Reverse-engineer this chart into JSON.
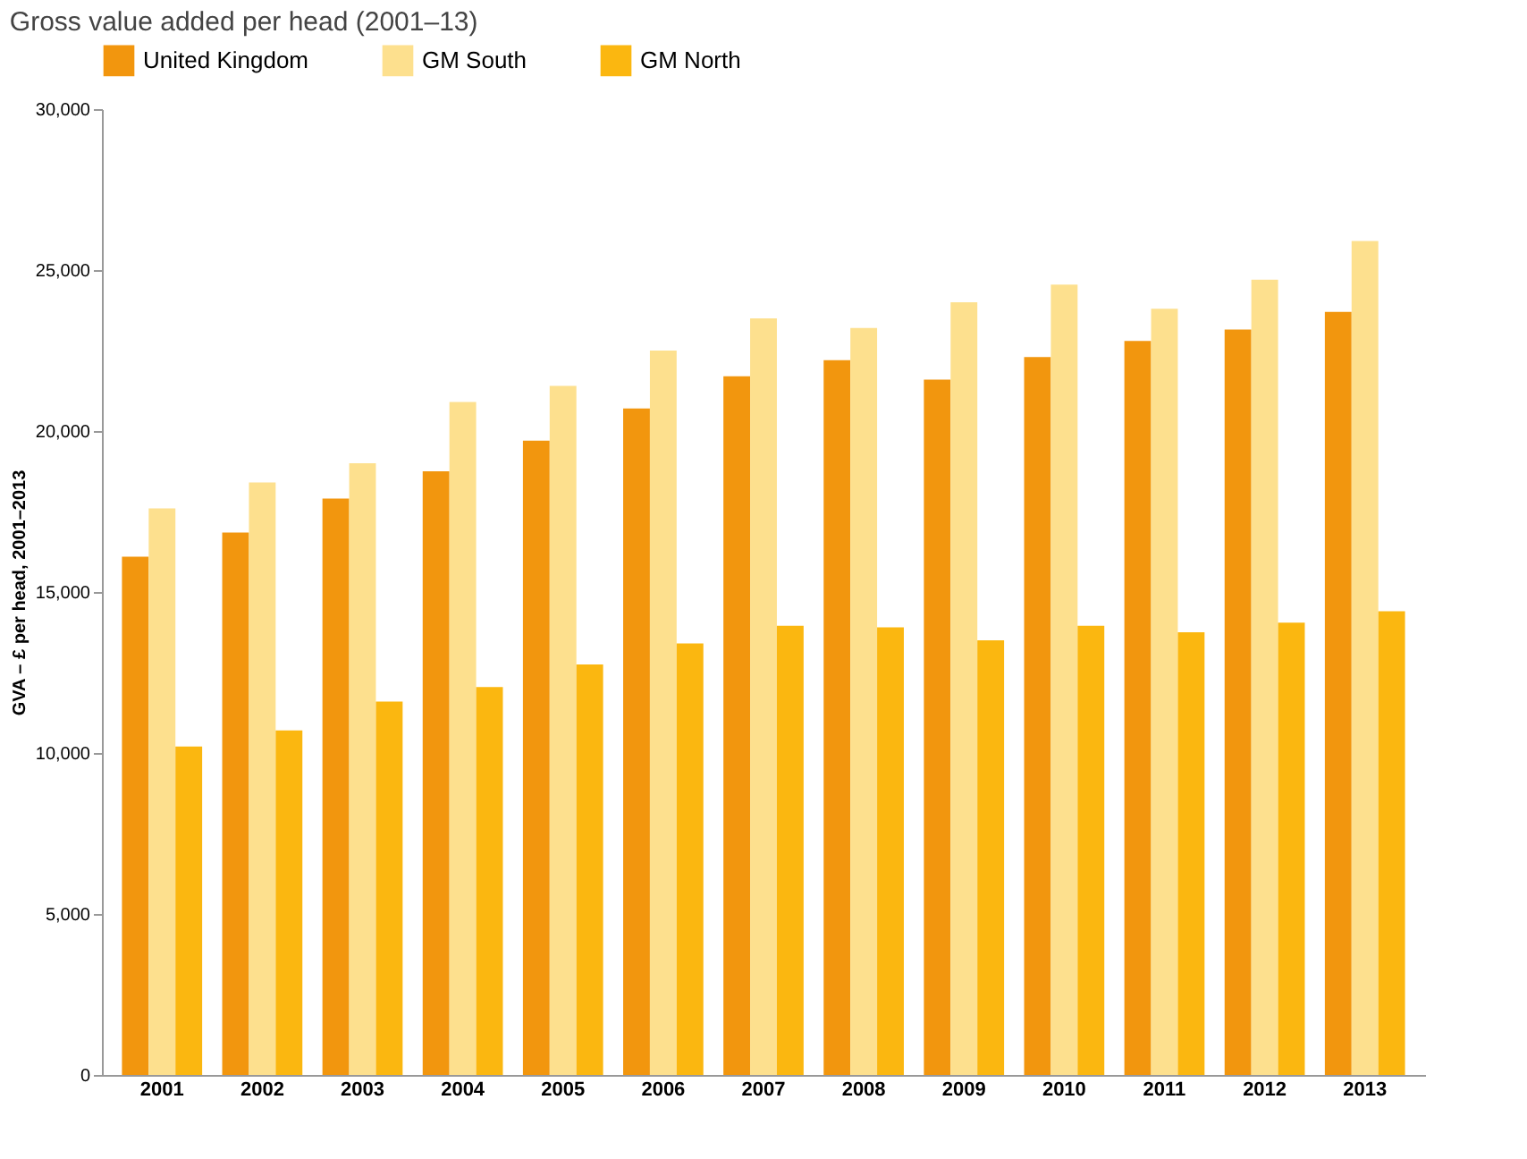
{
  "chart_data": {
    "type": "bar",
    "title": "Gross value added per head (2001–13)",
    "ylabel": "GVA – £ per head, 2001–2013",
    "categories": [
      "2001",
      "2002",
      "2003",
      "2004",
      "2005",
      "2006",
      "2007",
      "2008",
      "2009",
      "2010",
      "2011",
      "2012",
      "2013"
    ],
    "series": [
      {
        "name": "United Kingdom",
        "color": "#f2960e",
        "values": [
          16100,
          16850,
          17900,
          18750,
          19700,
          20700,
          21700,
          22200,
          21600,
          22300,
          22800,
          23150,
          23700
        ]
      },
      {
        "name": "GM South",
        "color": "#fde08e",
        "values": [
          17600,
          18400,
          19000,
          20900,
          21400,
          22500,
          23500,
          23200,
          24000,
          24550,
          23800,
          24700,
          25900
        ]
      },
      {
        "name": "GM North",
        "color": "#fbb710",
        "values": [
          10200,
          10700,
          11600,
          12050,
          12750,
          13400,
          13950,
          13900,
          13500,
          13950,
          13750,
          14050,
          14400
        ]
      }
    ],
    "ylim": [
      0,
      30000
    ],
    "yticks": [
      0,
      {
        "value": 5000,
        "label": "5,000"
      },
      {
        "value": 10000,
        "label": "10,000"
      },
      {
        "value": 15000,
        "label": "15,000"
      },
      {
        "value": 20000,
        "label": "20,000"
      },
      {
        "value": 25000,
        "label": "25,000"
      },
      {
        "value": 30000,
        "label": "30,000"
      }
    ],
    "grid": false,
    "legend": "top"
  }
}
